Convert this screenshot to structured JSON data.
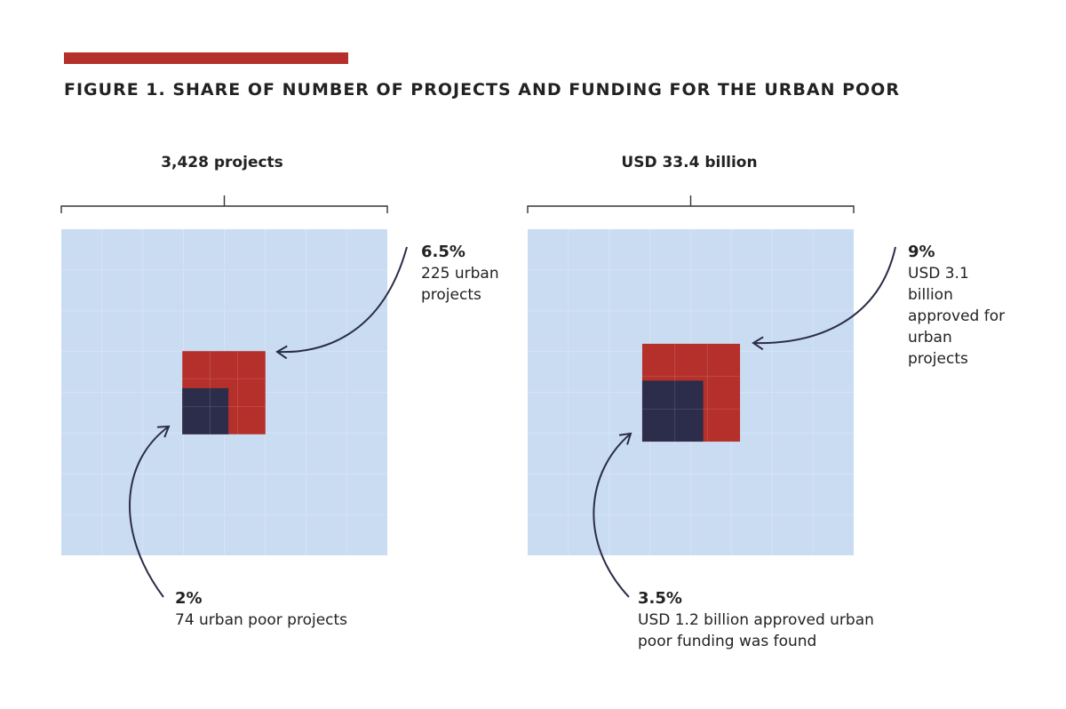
{
  "figure": {
    "title": "FIGURE 1. SHARE OF NUMBER OF PROJECTS AND FUNDING FOR THE URBAN POOR",
    "accent_color": "#b5302a"
  },
  "colors": {
    "total": "#c9dcf2",
    "urban": "#b5302a",
    "urban_poor": "#2b2d4a",
    "arrow": "#2b2d4a"
  },
  "chart_data": [
    {
      "type": "proportional-area",
      "title": "3,428 projects",
      "total": 3428,
      "segments": [
        {
          "value": 6.5,
          "unit": "%",
          "label": "6.5%",
          "description": "225 urban projects"
        },
        {
          "value": 2,
          "unit": "%",
          "label": "2%",
          "description": "74 urban poor projects"
        }
      ]
    },
    {
      "type": "proportional-area",
      "title": "USD 33.4 billion",
      "total": 33.4,
      "segments": [
        {
          "value": 9,
          "unit": "%",
          "label": "9%",
          "description": "USD 3.1 billion approved for urban projects"
        },
        {
          "value": 3.5,
          "unit": "%",
          "label": "3.5%",
          "description": "USD 1.2 billion approved urban poor funding was found"
        }
      ]
    }
  ]
}
